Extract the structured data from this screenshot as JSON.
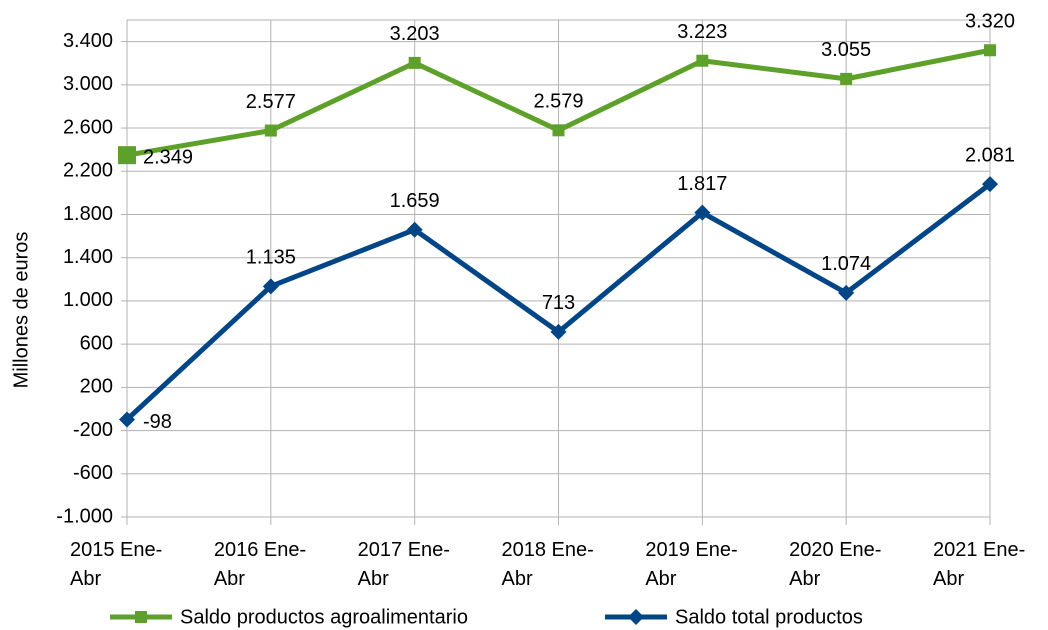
{
  "chart_data": {
    "type": "line",
    "y_axis_label": "Millones de euros",
    "categories": [
      "2015 Ene-Abr",
      "2016 Ene-Abr",
      "2017 Ene-Abr",
      "2018 Ene-Abr",
      "2019 Ene-Abr",
      "2020 Ene-Abr",
      "2021 Ene-Abr"
    ],
    "series": [
      {
        "name": "Saldo productos agroalimentario",
        "color": "#5ea12a",
        "marker": "square",
        "values": [
          2349,
          2577,
          3203,
          2579,
          3223,
          3055,
          3320
        ],
        "value_labels": [
          "2.349",
          "2.577",
          "3.203",
          "2.579",
          "3.223",
          "3.055",
          "3.320"
        ]
      },
      {
        "name": "Saldo total productos",
        "color": "#004586",
        "marker": "diamond",
        "values": [
          -98,
          1135,
          1659,
          713,
          1817,
          1074,
          2081
        ],
        "value_labels": [
          "-98",
          "1.135",
          "1.659",
          "713",
          "1.817",
          "1.074",
          "2.081"
        ]
      }
    ],
    "ylim": [
      -1000,
      3600
    ],
    "yticks": [
      {
        "value": -1000,
        "label": "-1.000"
      },
      -600,
      -200,
      200,
      600,
      {
        "value": 1000,
        "label": "1.000"
      },
      {
        "value": 1400,
        "label": "1.400"
      },
      {
        "value": 1800,
        "label": "1.800"
      },
      {
        "value": 2200,
        "label": "2.200"
      },
      {
        "value": 2600,
        "label": "2.600"
      },
      {
        "value": 3000,
        "label": "3.000"
      },
      {
        "value": 3400,
        "label": "3.400"
      }
    ],
    "grid": true,
    "legend": "bottom"
  }
}
